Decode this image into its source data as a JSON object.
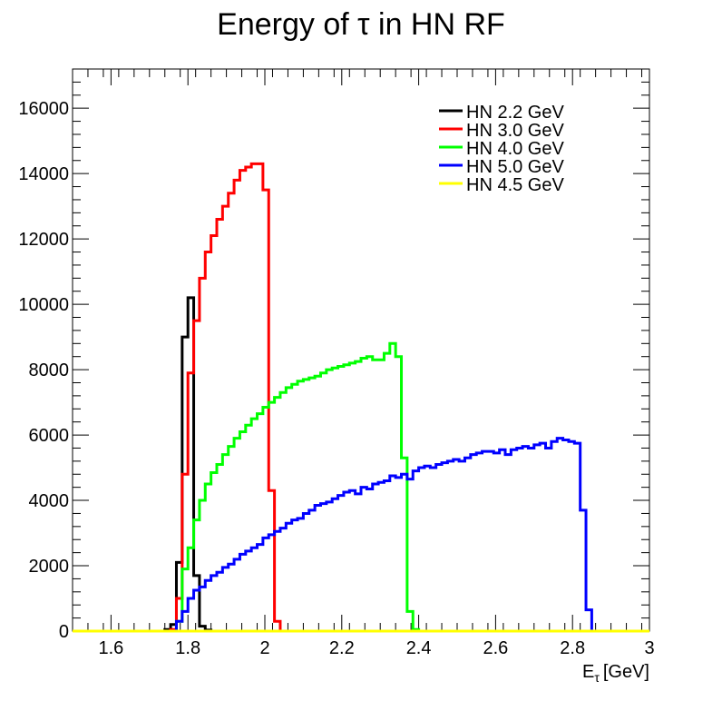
{
  "chart_data": {
    "type": "histogram-step",
    "title": "Energy of τ in HN RF",
    "xlabel": "E_τ [GeV]",
    "xlabel_main": "E",
    "xlabel_sub": "τ",
    "xlabel_unit": "[GeV]",
    "ylabel": "",
    "xlim": [
      1.5,
      3.0
    ],
    "ylim": [
      0,
      17200
    ],
    "xticks": [
      1.6,
      1.8,
      2.0,
      2.2,
      2.4,
      2.6,
      2.8,
      3.0
    ],
    "xtick_labels": [
      "1.6",
      "1.8",
      "2",
      "2.2",
      "2.4",
      "2.6",
      "2.8",
      "3"
    ],
    "yticks": [
      0,
      2000,
      4000,
      6000,
      8000,
      10000,
      12000,
      14000,
      16000
    ],
    "ytick_labels": [
      "0",
      "2000",
      "4000",
      "6000",
      "8000",
      "10000",
      "12000",
      "14000",
      "16000"
    ],
    "grid": false,
    "legend_position": "top-right",
    "bin_width": 0.015,
    "series": [
      {
        "name": "HN 2.2 GeV",
        "color": "#000000",
        "x": [
          1.74,
          1.755,
          1.77,
          1.785,
          1.8,
          1.815,
          1.83,
          1.845,
          1.86
        ],
        "values": [
          50,
          200,
          2100,
          9000,
          10200,
          1700,
          150,
          30,
          0
        ]
      },
      {
        "name": "HN 3.0 GeV",
        "color": "#ff0000",
        "x": [
          1.755,
          1.77,
          1.785,
          1.8,
          1.815,
          1.83,
          1.845,
          1.86,
          1.875,
          1.89,
          1.905,
          1.92,
          1.935,
          1.95,
          1.965,
          1.98,
          1.995,
          2.01,
          2.025,
          2.04,
          2.055
        ],
        "values": [
          50,
          1000,
          4800,
          7900,
          9500,
          10800,
          11600,
          12100,
          12600,
          13000,
          13400,
          13800,
          14100,
          14200,
          14300,
          14300,
          13500,
          4300,
          300,
          0,
          0
        ]
      },
      {
        "name": "HN 4.0 GeV",
        "color": "#00ff00",
        "x": [
          1.77,
          1.785,
          1.8,
          1.815,
          1.83,
          1.845,
          1.86,
          1.875,
          1.89,
          1.905,
          1.92,
          1.935,
          1.95,
          1.965,
          1.98,
          1.995,
          2.01,
          2.025,
          2.04,
          2.055,
          2.07,
          2.085,
          2.1,
          2.115,
          2.13,
          2.145,
          2.16,
          2.175,
          2.19,
          2.205,
          2.22,
          2.235,
          2.25,
          2.265,
          2.28,
          2.295,
          2.31,
          2.325,
          2.34,
          2.355,
          2.37,
          2.385,
          2.4,
          2.415,
          2.43
        ],
        "values": [
          300,
          1900,
          2550,
          3400,
          4000,
          4500,
          4850,
          5100,
          5400,
          5650,
          5900,
          6100,
          6300,
          6500,
          6650,
          6850,
          7000,
          7150,
          7300,
          7450,
          7550,
          7650,
          7700,
          7750,
          7800,
          7900,
          8000,
          8050,
          8100,
          8150,
          8200,
          8250,
          8350,
          8400,
          8300,
          8300,
          8500,
          8800,
          8400,
          5300,
          600,
          50,
          0,
          0,
          0
        ]
      },
      {
        "name": "HN 5.0 GeV",
        "color": "#0000ff",
        "x": [
          1.77,
          1.785,
          1.8,
          1.815,
          1.83,
          1.845,
          1.86,
          1.875,
          1.89,
          1.905,
          1.92,
          1.935,
          1.95,
          1.965,
          1.98,
          1.995,
          2.01,
          2.025,
          2.04,
          2.055,
          2.07,
          2.085,
          2.1,
          2.115,
          2.13,
          2.145,
          2.16,
          2.175,
          2.19,
          2.205,
          2.22,
          2.235,
          2.25,
          2.265,
          2.28,
          2.295,
          2.31,
          2.325,
          2.34,
          2.355,
          2.37,
          2.385,
          2.4,
          2.415,
          2.43,
          2.445,
          2.46,
          2.475,
          2.49,
          2.505,
          2.52,
          2.535,
          2.55,
          2.565,
          2.58,
          2.595,
          2.61,
          2.625,
          2.64,
          2.655,
          2.67,
          2.685,
          2.7,
          2.715,
          2.73,
          2.745,
          2.76,
          2.775,
          2.79,
          2.805,
          2.82,
          2.835,
          2.85
        ],
        "values": [
          300,
          600,
          1000,
          1250,
          1350,
          1550,
          1700,
          1800,
          1950,
          2050,
          2200,
          2350,
          2450,
          2550,
          2650,
          2850,
          2950,
          3050,
          3150,
          3300,
          3400,
          3450,
          3600,
          3700,
          3850,
          3900,
          3950,
          4050,
          4150,
          4250,
          4300,
          4200,
          4400,
          4350,
          4500,
          4550,
          4600,
          4750,
          4700,
          4800,
          4650,
          4900,
          5000,
          5050,
          5000,
          5100,
          5150,
          5200,
          5250,
          5200,
          5300,
          5400,
          5450,
          5500,
          5500,
          5450,
          5550,
          5400,
          5550,
          5600,
          5650,
          5600,
          5700,
          5750,
          5600,
          5800,
          5900,
          5850,
          5800,
          5750,
          3700,
          650,
          0
        ]
      },
      {
        "name": "HN 4.5 GeV",
        "color": "#ffff00",
        "x": [
          1.5,
          3.0
        ],
        "values": [
          0,
          0
        ]
      }
    ]
  }
}
